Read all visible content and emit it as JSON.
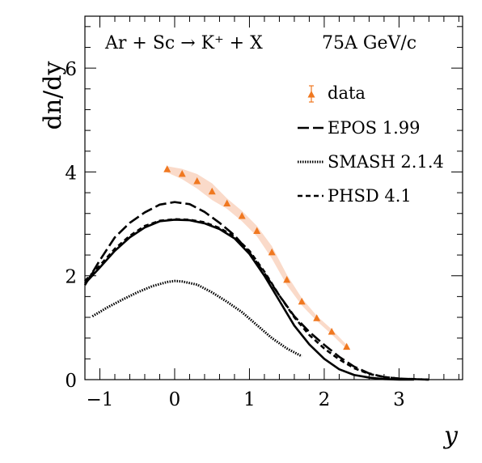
{
  "chart_data": {
    "type": "line",
    "title": "",
    "header": {
      "reaction": "Ar + Sc → K⁺ + X",
      "energy": "75A GeV/c"
    },
    "xlabel": "y",
    "ylabel": "dn/dy",
    "xlim": [
      -1.2,
      3.85
    ],
    "ylim": [
      0,
      7
    ],
    "x_ticks": [
      -1,
      0,
      1,
      2,
      3
    ],
    "y_ticks": [
      0,
      2,
      4,
      6
    ],
    "grid": false,
    "legend_position": "top-right",
    "series": [
      {
        "name": "data",
        "kind": "points",
        "color": "#f07820",
        "band_color": "#f9d4bf",
        "x": [
          -0.1,
          0.1,
          0.3,
          0.5,
          0.7,
          0.9,
          1.1,
          1.3,
          1.5,
          1.7,
          1.9,
          2.1,
          2.3
        ],
        "y": [
          4.05,
          3.96,
          3.82,
          3.62,
          3.39,
          3.15,
          2.86,
          2.45,
          1.92,
          1.5,
          1.18,
          0.92,
          0.63
        ],
        "band_halfwidth": [
          0.06,
          0.1,
          0.14,
          0.16,
          0.1,
          0.1,
          0.1,
          0.12,
          0.1,
          0.07,
          0.05,
          0.05,
          0.04
        ]
      },
      {
        "name": "EPOS 1.99",
        "kind": "long-dash",
        "color": "#000000",
        "x": [
          -1.2,
          -1.0,
          -0.8,
          -0.6,
          -0.4,
          -0.2,
          0.0,
          0.2,
          0.4,
          0.6,
          0.8,
          1.0,
          1.2,
          1.4,
          1.6,
          1.8,
          2.0,
          2.2,
          2.4,
          2.6,
          2.8,
          3.0,
          3.2,
          3.4
        ],
        "y": [
          1.82,
          2.3,
          2.74,
          3.02,
          3.22,
          3.37,
          3.42,
          3.38,
          3.23,
          3.02,
          2.78,
          2.45,
          2.05,
          1.62,
          1.22,
          0.92,
          0.67,
          0.44,
          0.25,
          0.12,
          0.05,
          0.02,
          0.01,
          0.0
        ]
      },
      {
        "name": "SMASH 2.1.4",
        "kind": "dotted",
        "color": "#000000",
        "x": [
          -1.1,
          -0.9,
          -0.7,
          -0.5,
          -0.3,
          -0.1,
          0.0,
          0.1,
          0.3,
          0.5,
          0.7,
          0.9,
          1.1,
          1.3,
          1.5,
          1.7
        ],
        "y": [
          1.22,
          1.39,
          1.54,
          1.68,
          1.8,
          1.88,
          1.9,
          1.89,
          1.83,
          1.68,
          1.5,
          1.3,
          1.05,
          0.8,
          0.6,
          0.45
        ]
      },
      {
        "name": "PHSD 4.1",
        "kind": "short-dash",
        "color": "#000000",
        "x": [
          -1.2,
          -1.0,
          -0.8,
          -0.6,
          -0.4,
          -0.2,
          0.0,
          0.2,
          0.4,
          0.6,
          0.8,
          1.0,
          1.2,
          1.4,
          1.6,
          1.8,
          2.0,
          2.2,
          2.4,
          2.6,
          2.8,
          3.0,
          3.2,
          3.4
        ],
        "y": [
          1.9,
          2.2,
          2.52,
          2.77,
          2.96,
          3.06,
          3.09,
          3.08,
          3.03,
          2.92,
          2.76,
          2.48,
          2.08,
          1.62,
          1.2,
          0.86,
          0.6,
          0.39,
          0.22,
          0.11,
          0.05,
          0.02,
          0.01,
          0.0
        ]
      },
      {
        "name": "",
        "kind": "solid",
        "color": "#000000",
        "x": [
          -1.2,
          -1.0,
          -0.8,
          -0.6,
          -0.4,
          -0.2,
          0.0,
          0.2,
          0.4,
          0.6,
          0.8,
          1.0,
          1.2,
          1.4,
          1.6,
          1.8,
          2.0,
          2.2,
          2.4,
          2.6,
          2.8,
          3.0,
          3.2
        ],
        "y": [
          1.85,
          2.16,
          2.48,
          2.74,
          2.93,
          3.05,
          3.08,
          3.07,
          3.01,
          2.9,
          2.72,
          2.42,
          2.0,
          1.52,
          1.04,
          0.68,
          0.4,
          0.2,
          0.09,
          0.04,
          0.01,
          0.0,
          0.0
        ]
      }
    ]
  }
}
